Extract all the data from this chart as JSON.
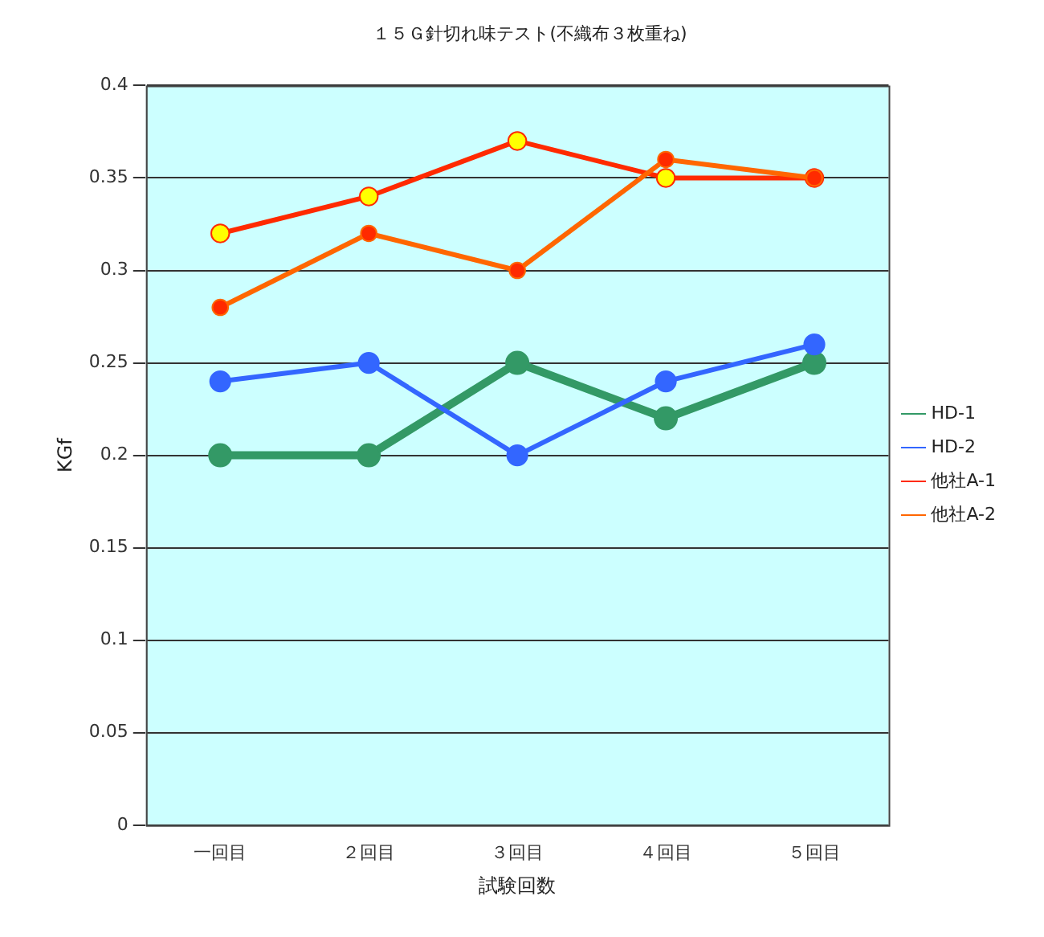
{
  "chart_data": {
    "type": "line",
    "title": "１５Ｇ針切れ味テスト(不織布３枚重ね)",
    "xlabel": "試験回数",
    "ylabel": "KGf",
    "categories": [
      "一回目",
      "２回目",
      "３回目",
      "４回目",
      "５回目"
    ],
    "series": [
      {
        "name": "HD-1",
        "color": "#339966",
        "values": [
          0.2,
          0.2,
          0.25,
          0.22,
          0.25
        ]
      },
      {
        "name": "HD-2",
        "color": "#3366ff",
        "values": [
          0.24,
          0.25,
          0.2,
          0.24,
          0.26
        ]
      },
      {
        "name": "他社A-1",
        "color": "#ff2a00",
        "colors": [
          "#ffff00",
          "#ffff00",
          "#ffff00",
          "#ffff00",
          "#ffff00"
        ],
        "values": [
          0.32,
          0.34,
          0.37,
          0.35,
          0.35
        ]
      },
      {
        "name": "他社A-2",
        "color": "#ff6600",
        "colors": [
          "#ff2a00",
          "#ff2a00",
          "#ff2a00",
          "#ff2a00",
          "#ff2a00"
        ],
        "values": [
          0.28,
          0.32,
          0.3,
          0.36,
          0.35
        ]
      }
    ],
    "ylim": [
      0,
      0.4
    ],
    "yticks": [
      0,
      0.05,
      0.1,
      0.15,
      0.2,
      0.25,
      0.3,
      0.35,
      0.4
    ],
    "grid": "y",
    "legend": "right",
    "marker": "circle",
    "line_style": "solid"
  }
}
